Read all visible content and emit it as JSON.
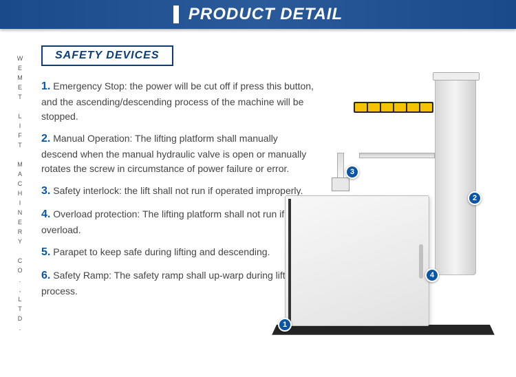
{
  "header": {
    "title": "PRODUCT DETAIL"
  },
  "brand_vertical": "WEMET LIFT MACHINERY CO.,LTD.",
  "section_label": "SAFETY DEVICES",
  "items": [
    {
      "num": "1.",
      "text": "Emergency Stop: the power will be cut off if press this button, and the ascending/descending process of the machine will be stopped."
    },
    {
      "num": "2.",
      "text": "Manual Operation: The lifting platform shall manually descend when the manual hydraulic valve is open or manually rotates the screw in circumstance of power failure or error."
    },
    {
      "num": "3.",
      "text": "Safety interlock: the lift shall not run if operated improperly."
    },
    {
      "num": "4.",
      "text": "Overload protection: The lifting platform shall not run if overload."
    },
    {
      "num": "5.",
      "text": "Parapet to keep safe during lifting and descending."
    },
    {
      "num": "6.",
      "text": "Safety Ramp: The safety ramp shall up-warp during lifting process."
    }
  ],
  "callouts": {
    "c1": "1",
    "c2": "2",
    "c3": "3",
    "c4": "4"
  },
  "colors": {
    "header_gradient_from": "#1a4a8a",
    "header_gradient_to": "#2a5a9a",
    "accent": "#0a3d7a",
    "number": "#0a55a5",
    "warn": "#f5c300"
  }
}
